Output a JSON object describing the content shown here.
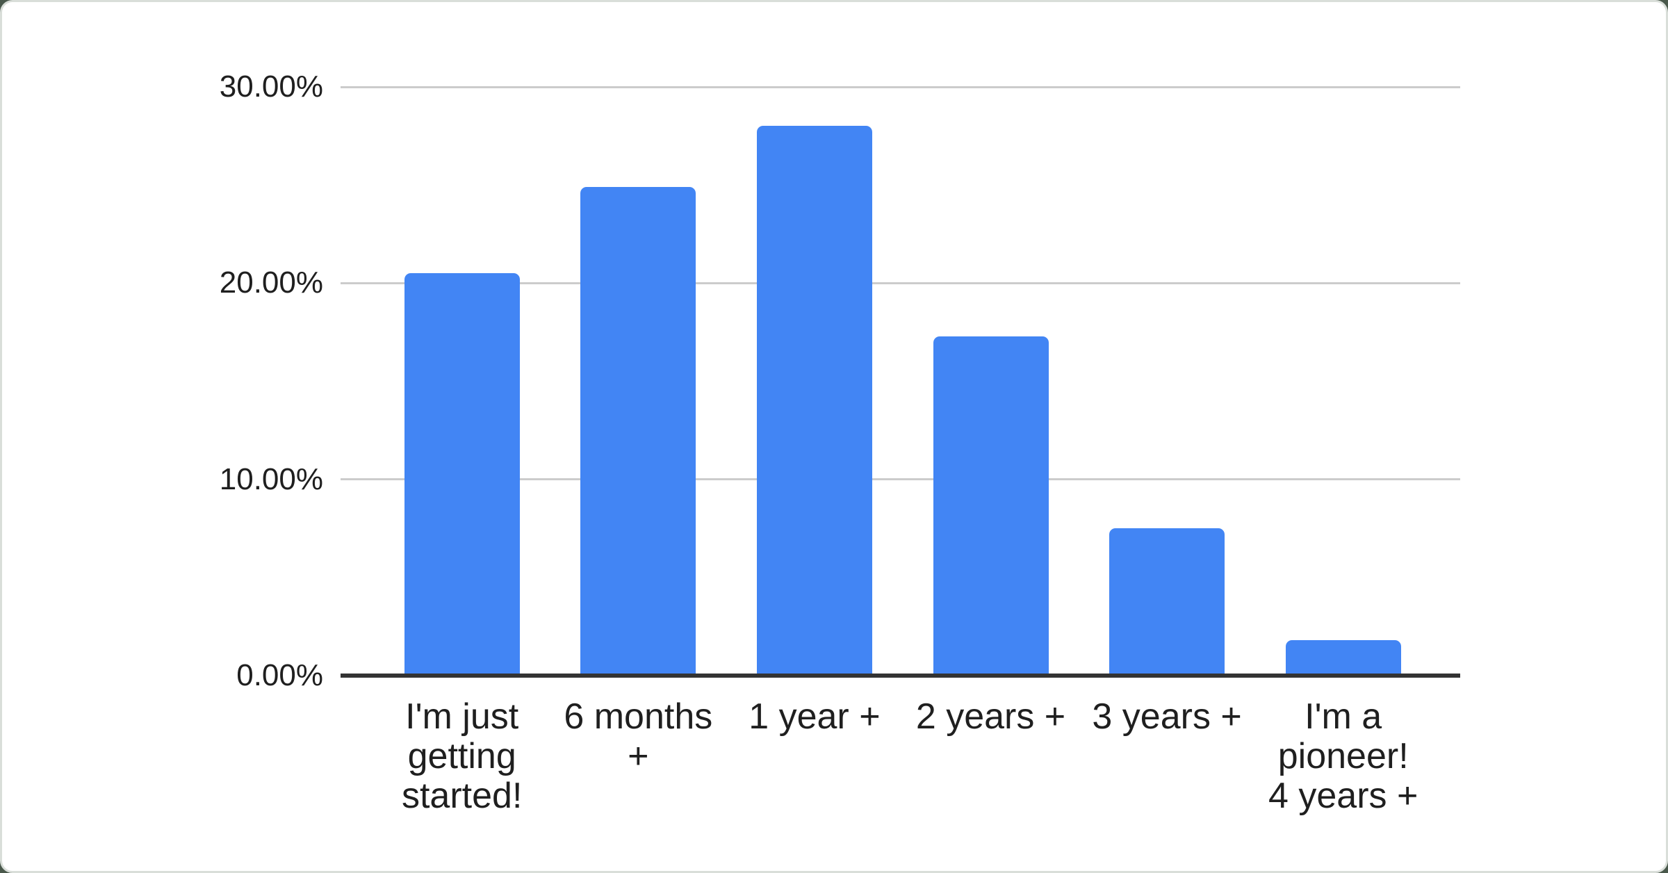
{
  "page": {
    "background_color": "#49584b",
    "card_background": "#ffffff",
    "card_border_color": "#d9ded9"
  },
  "chart_data": {
    "type": "bar",
    "title": "",
    "xlabel": "",
    "ylabel": "",
    "categories": [
      "I'm just getting started!",
      "6 months +",
      "1 year +",
      "2 years +",
      "3 years +",
      "I'm a pioneer! 4 years +"
    ],
    "category_lines": [
      [
        "I'm just",
        "getting",
        "started!"
      ],
      [
        "6 months",
        "+"
      ],
      [
        "1 year +"
      ],
      [
        "2 years +"
      ],
      [
        "3 years +"
      ],
      [
        "I'm a",
        "pioneer!",
        "4 years +"
      ]
    ],
    "values": [
      20.5,
      24.9,
      28.0,
      17.3,
      7.5,
      1.8
    ],
    "value_unit": "%",
    "ylim": [
      0,
      30
    ],
    "y_ticks": [
      {
        "value": 30,
        "label": "30.00%"
      },
      {
        "value": 20,
        "label": "20.00%"
      },
      {
        "value": 10,
        "label": "10.00%"
      },
      {
        "value": 0,
        "label": "0.00%"
      }
    ],
    "grid": true,
    "legend_position": "none",
    "colors": {
      "bar": "#4285f4",
      "gridline": "#cccccc",
      "axis_line": "#333333",
      "label_text": "#1f1f1f"
    }
  }
}
